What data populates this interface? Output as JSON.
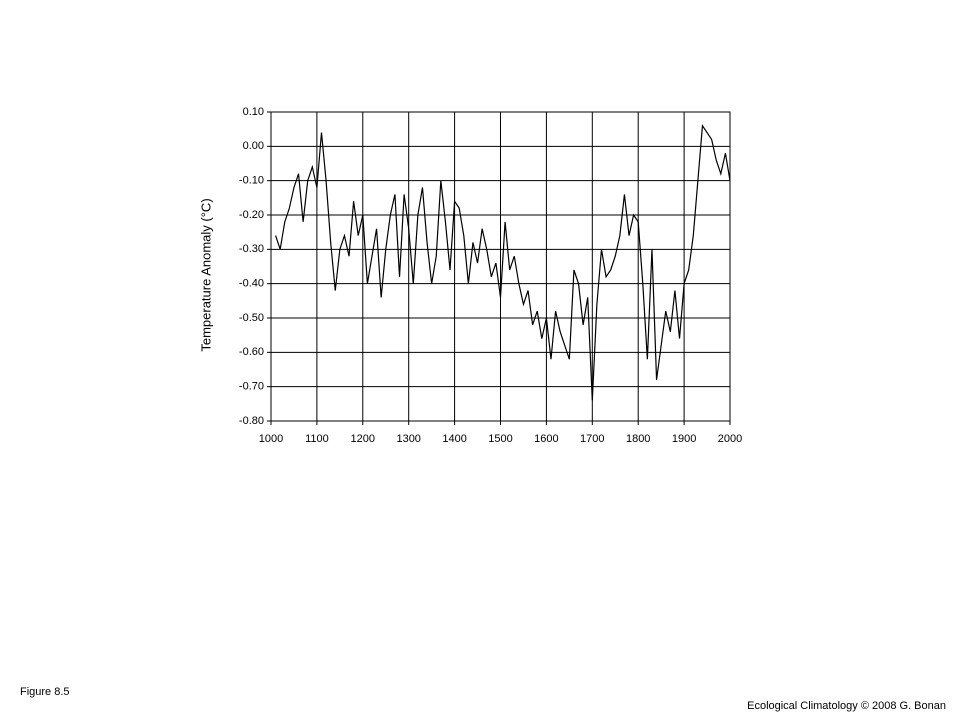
{
  "chart_data": {
    "type": "line",
    "y_label": "Temperature Anomaly (°C)",
    "color": "#000000",
    "grid": true,
    "xlim": [
      1000,
      2000
    ],
    "xticks": [
      1000,
      1100,
      1200,
      1300,
      1400,
      1500,
      1600,
      1700,
      1800,
      1900,
      2000
    ],
    "ylim": [
      -0.8,
      0.1
    ],
    "yticks": [
      {
        "value": -0.8,
        "label": "-0.80"
      },
      {
        "value": -0.7,
        "label": "-0.70"
      },
      {
        "value": -0.6,
        "label": "-0.60"
      },
      {
        "value": -0.5,
        "label": "-0.50"
      },
      {
        "value": -0.4,
        "label": "-0.40"
      },
      {
        "value": -0.3,
        "label": "-0.30"
      },
      {
        "value": -0.2,
        "label": "-0.20"
      },
      {
        "value": -0.1,
        "label": "-0.10"
      },
      {
        "value": 0,
        "label": "0.00"
      },
      {
        "value": 0.1,
        "label": "0.10"
      }
    ],
    "x": [
      1010,
      1020,
      1030,
      1040,
      1050,
      1060,
      1070,
      1080,
      1090,
      1100,
      1110,
      1120,
      1130,
      1140,
      1150,
      1160,
      1170,
      1180,
      1190,
      1200,
      1210,
      1220,
      1230,
      1240,
      1250,
      1260,
      1270,
      1280,
      1290,
      1300,
      1310,
      1320,
      1330,
      1340,
      1350,
      1360,
      1370,
      1380,
      1390,
      1400,
      1410,
      1420,
      1430,
      1440,
      1450,
      1460,
      1470,
      1480,
      1490,
      1500,
      1510,
      1520,
      1530,
      1540,
      1550,
      1560,
      1570,
      1580,
      1590,
      1600,
      1610,
      1620,
      1630,
      1640,
      1650,
      1660,
      1670,
      1680,
      1690,
      1700,
      1710,
      1720,
      1730,
      1740,
      1750,
      1760,
      1770,
      1780,
      1790,
      1800,
      1810,
      1820,
      1830,
      1840,
      1850,
      1860,
      1870,
      1880,
      1890,
      1900,
      1910,
      1920,
      1930,
      1940,
      1950,
      1960,
      1970,
      1980,
      1990,
      2000
    ],
    "values": [
      -0.26,
      -0.3,
      -0.22,
      -0.18,
      -0.12,
      -0.08,
      -0.22,
      -0.1,
      -0.06,
      -0.12,
      0.04,
      -0.1,
      -0.28,
      -0.42,
      -0.3,
      -0.26,
      -0.32,
      -0.16,
      -0.26,
      -0.2,
      -0.4,
      -0.32,
      -0.24,
      -0.44,
      -0.3,
      -0.2,
      -0.14,
      -0.38,
      -0.14,
      -0.24,
      -0.4,
      -0.2,
      -0.12,
      -0.28,
      -0.4,
      -0.32,
      -0.1,
      -0.22,
      -0.36,
      -0.16,
      -0.18,
      -0.26,
      -0.4,
      -0.28,
      -0.34,
      -0.24,
      -0.3,
      -0.38,
      -0.34,
      -0.44,
      -0.22,
      -0.36,
      -0.32,
      -0.4,
      -0.46,
      -0.42,
      -0.52,
      -0.48,
      -0.56,
      -0.5,
      -0.62,
      -0.48,
      -0.54,
      -0.58,
      -0.62,
      -0.36,
      -0.4,
      -0.52,
      -0.44,
      -0.74,
      -0.46,
      -0.3,
      -0.38,
      -0.36,
      -0.32,
      -0.26,
      -0.14,
      -0.26,
      -0.2,
      -0.22,
      -0.4,
      -0.62,
      -0.3,
      -0.68,
      -0.58,
      -0.48,
      -0.54,
      -0.42,
      -0.56,
      -0.4,
      -0.36,
      -0.26,
      -0.1,
      0.06,
      0.04,
      0.02,
      -0.04,
      -0.08,
      -0.02,
      -0.1
    ]
  },
  "footer": {
    "left": "Figure 8.5",
    "right": "Ecological Climatology © 2008 G. Bonan"
  }
}
